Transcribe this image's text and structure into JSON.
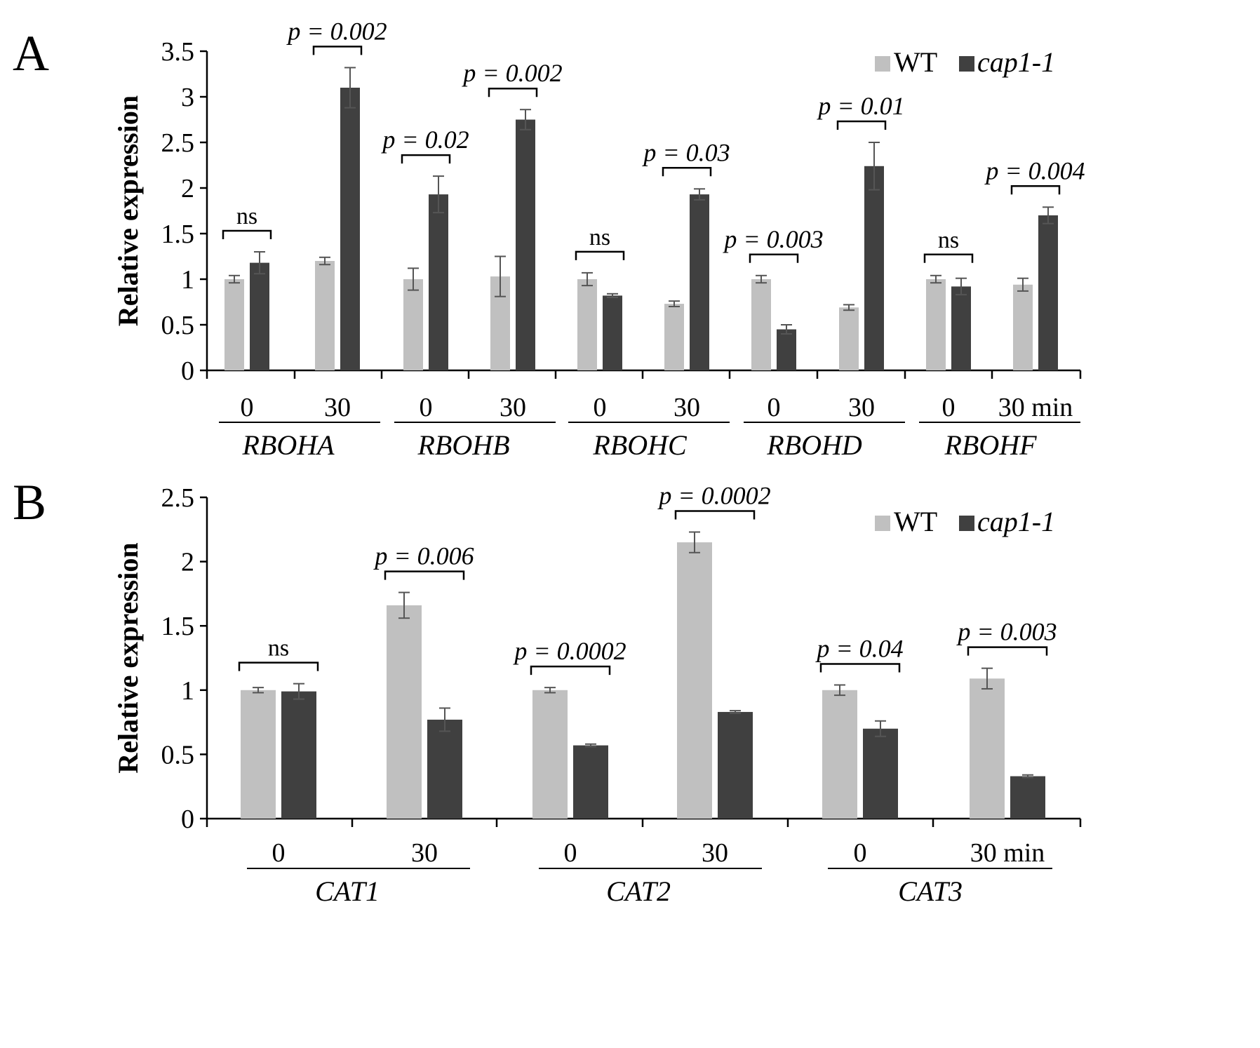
{
  "legend": {
    "wt": "WT",
    "mutant": "cap1-1"
  },
  "colors": {
    "wt": "#c0c0c0",
    "mutant": "#404040",
    "axis": "#000000",
    "error": "#555555"
  },
  "chart_data": [
    {
      "panel": "A",
      "type": "bar",
      "ylabel": "Relative expression",
      "ylim": [
        0,
        3.5
      ],
      "yticks": [
        "0",
        "0.5",
        "1",
        "1.5",
        "2",
        "2.5",
        "3",
        "3.5"
      ],
      "genes": [
        "RBOHA",
        "RBOHB",
        "RBOHC",
        "RBOHD",
        "RBOHF"
      ],
      "time_labels": [
        "0",
        "30",
        "0",
        "30",
        "0",
        "30",
        "0",
        "30",
        "0",
        "30 min"
      ],
      "series": [
        {
          "name": "WT",
          "values": [
            1.0,
            1.2,
            1.0,
            1.03,
            1.0,
            0.73,
            1.0,
            0.69,
            1.0,
            0.94
          ],
          "errors": [
            0.04,
            0.04,
            0.12,
            0.22,
            0.07,
            0.03,
            0.04,
            0.03,
            0.04,
            0.07
          ]
        },
        {
          "name": "cap1-1",
          "values": [
            1.18,
            3.1,
            1.93,
            2.75,
            0.82,
            1.93,
            0.45,
            2.24,
            0.92,
            1.7
          ],
          "errors": [
            0.12,
            0.22,
            0.2,
            0.11,
            0.02,
            0.06,
            0.05,
            0.26,
            0.09,
            0.09
          ]
        }
      ],
      "annotations": [
        "ns",
        "p = 0.002",
        "p = 0.02",
        "p = 0.002",
        "ns",
        "p = 0.03",
        "p = 0.003",
        "p = 0.01",
        "ns",
        "p = 0.004"
      ]
    },
    {
      "panel": "B",
      "type": "bar",
      "ylabel": "Relative expression",
      "ylim": [
        0,
        2.5
      ],
      "yticks": [
        "0",
        "0.5",
        "1",
        "1.5",
        "2",
        "2.5"
      ],
      "genes": [
        "CAT1",
        "CAT2",
        "CAT3"
      ],
      "time_labels": [
        "0",
        "30",
        "0",
        "30",
        "0",
        "30 min"
      ],
      "series": [
        {
          "name": "WT",
          "values": [
            1.0,
            1.66,
            1.0,
            2.15,
            1.0,
            1.09
          ],
          "errors": [
            0.02,
            0.1,
            0.02,
            0.08,
            0.04,
            0.08
          ]
        },
        {
          "name": "cap1-1",
          "values": [
            0.99,
            0.77,
            0.57,
            0.83,
            0.7,
            0.33
          ],
          "errors": [
            0.06,
            0.09,
            0.01,
            0.01,
            0.06,
            0.01
          ]
        }
      ],
      "annotations": [
        "ns",
        "p = 0.006",
        "p = 0.0002",
        "p = 0.0002",
        "p = 0.04",
        "p = 0.003"
      ]
    }
  ]
}
